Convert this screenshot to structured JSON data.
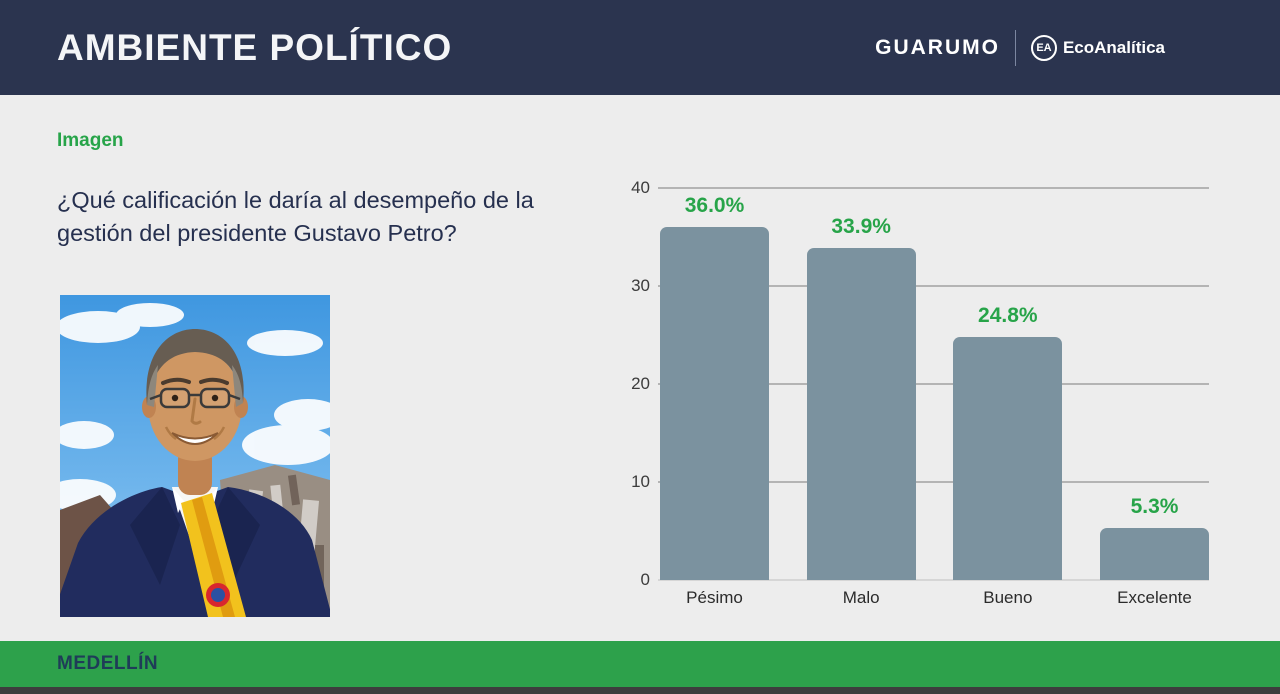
{
  "header": {
    "title": "AMBIENTE POLÍTICO",
    "brand_guarumo": "GUARUMO",
    "brand_eco": "EcoAnalítica",
    "eco_monogram": "EA"
  },
  "section_label": "Imagen",
  "question": "¿Qué calificación le daría al desempeño de la gestión del presidente Gustavo Petro?",
  "footer": {
    "city": "MEDELLÍN"
  },
  "chart_data": {
    "type": "bar",
    "categories": [
      "Pésimo",
      "Malo",
      "Bueno",
      "Excelente"
    ],
    "values": [
      36.0,
      33.9,
      24.8,
      5.3
    ],
    "value_labels": [
      "36.0%",
      "33.9%",
      "24.8%",
      "5.3%"
    ],
    "title": "",
    "xlabel": "",
    "ylabel": "",
    "ylim": [
      0,
      40
    ],
    "yticks": [
      0,
      10,
      20,
      30,
      40
    ],
    "grid": true,
    "legend": "none",
    "bar_color": "#7b929f",
    "value_label_color": "#27a449"
  },
  "colors": {
    "header_bg": "#2b344f",
    "body_bg": "#ededed",
    "accent_green": "#27a449",
    "footer_green": "#2da14b",
    "bottom_strip": "#3d3d3d",
    "bar_fill": "#7b929f",
    "question_text": "#26304f"
  }
}
